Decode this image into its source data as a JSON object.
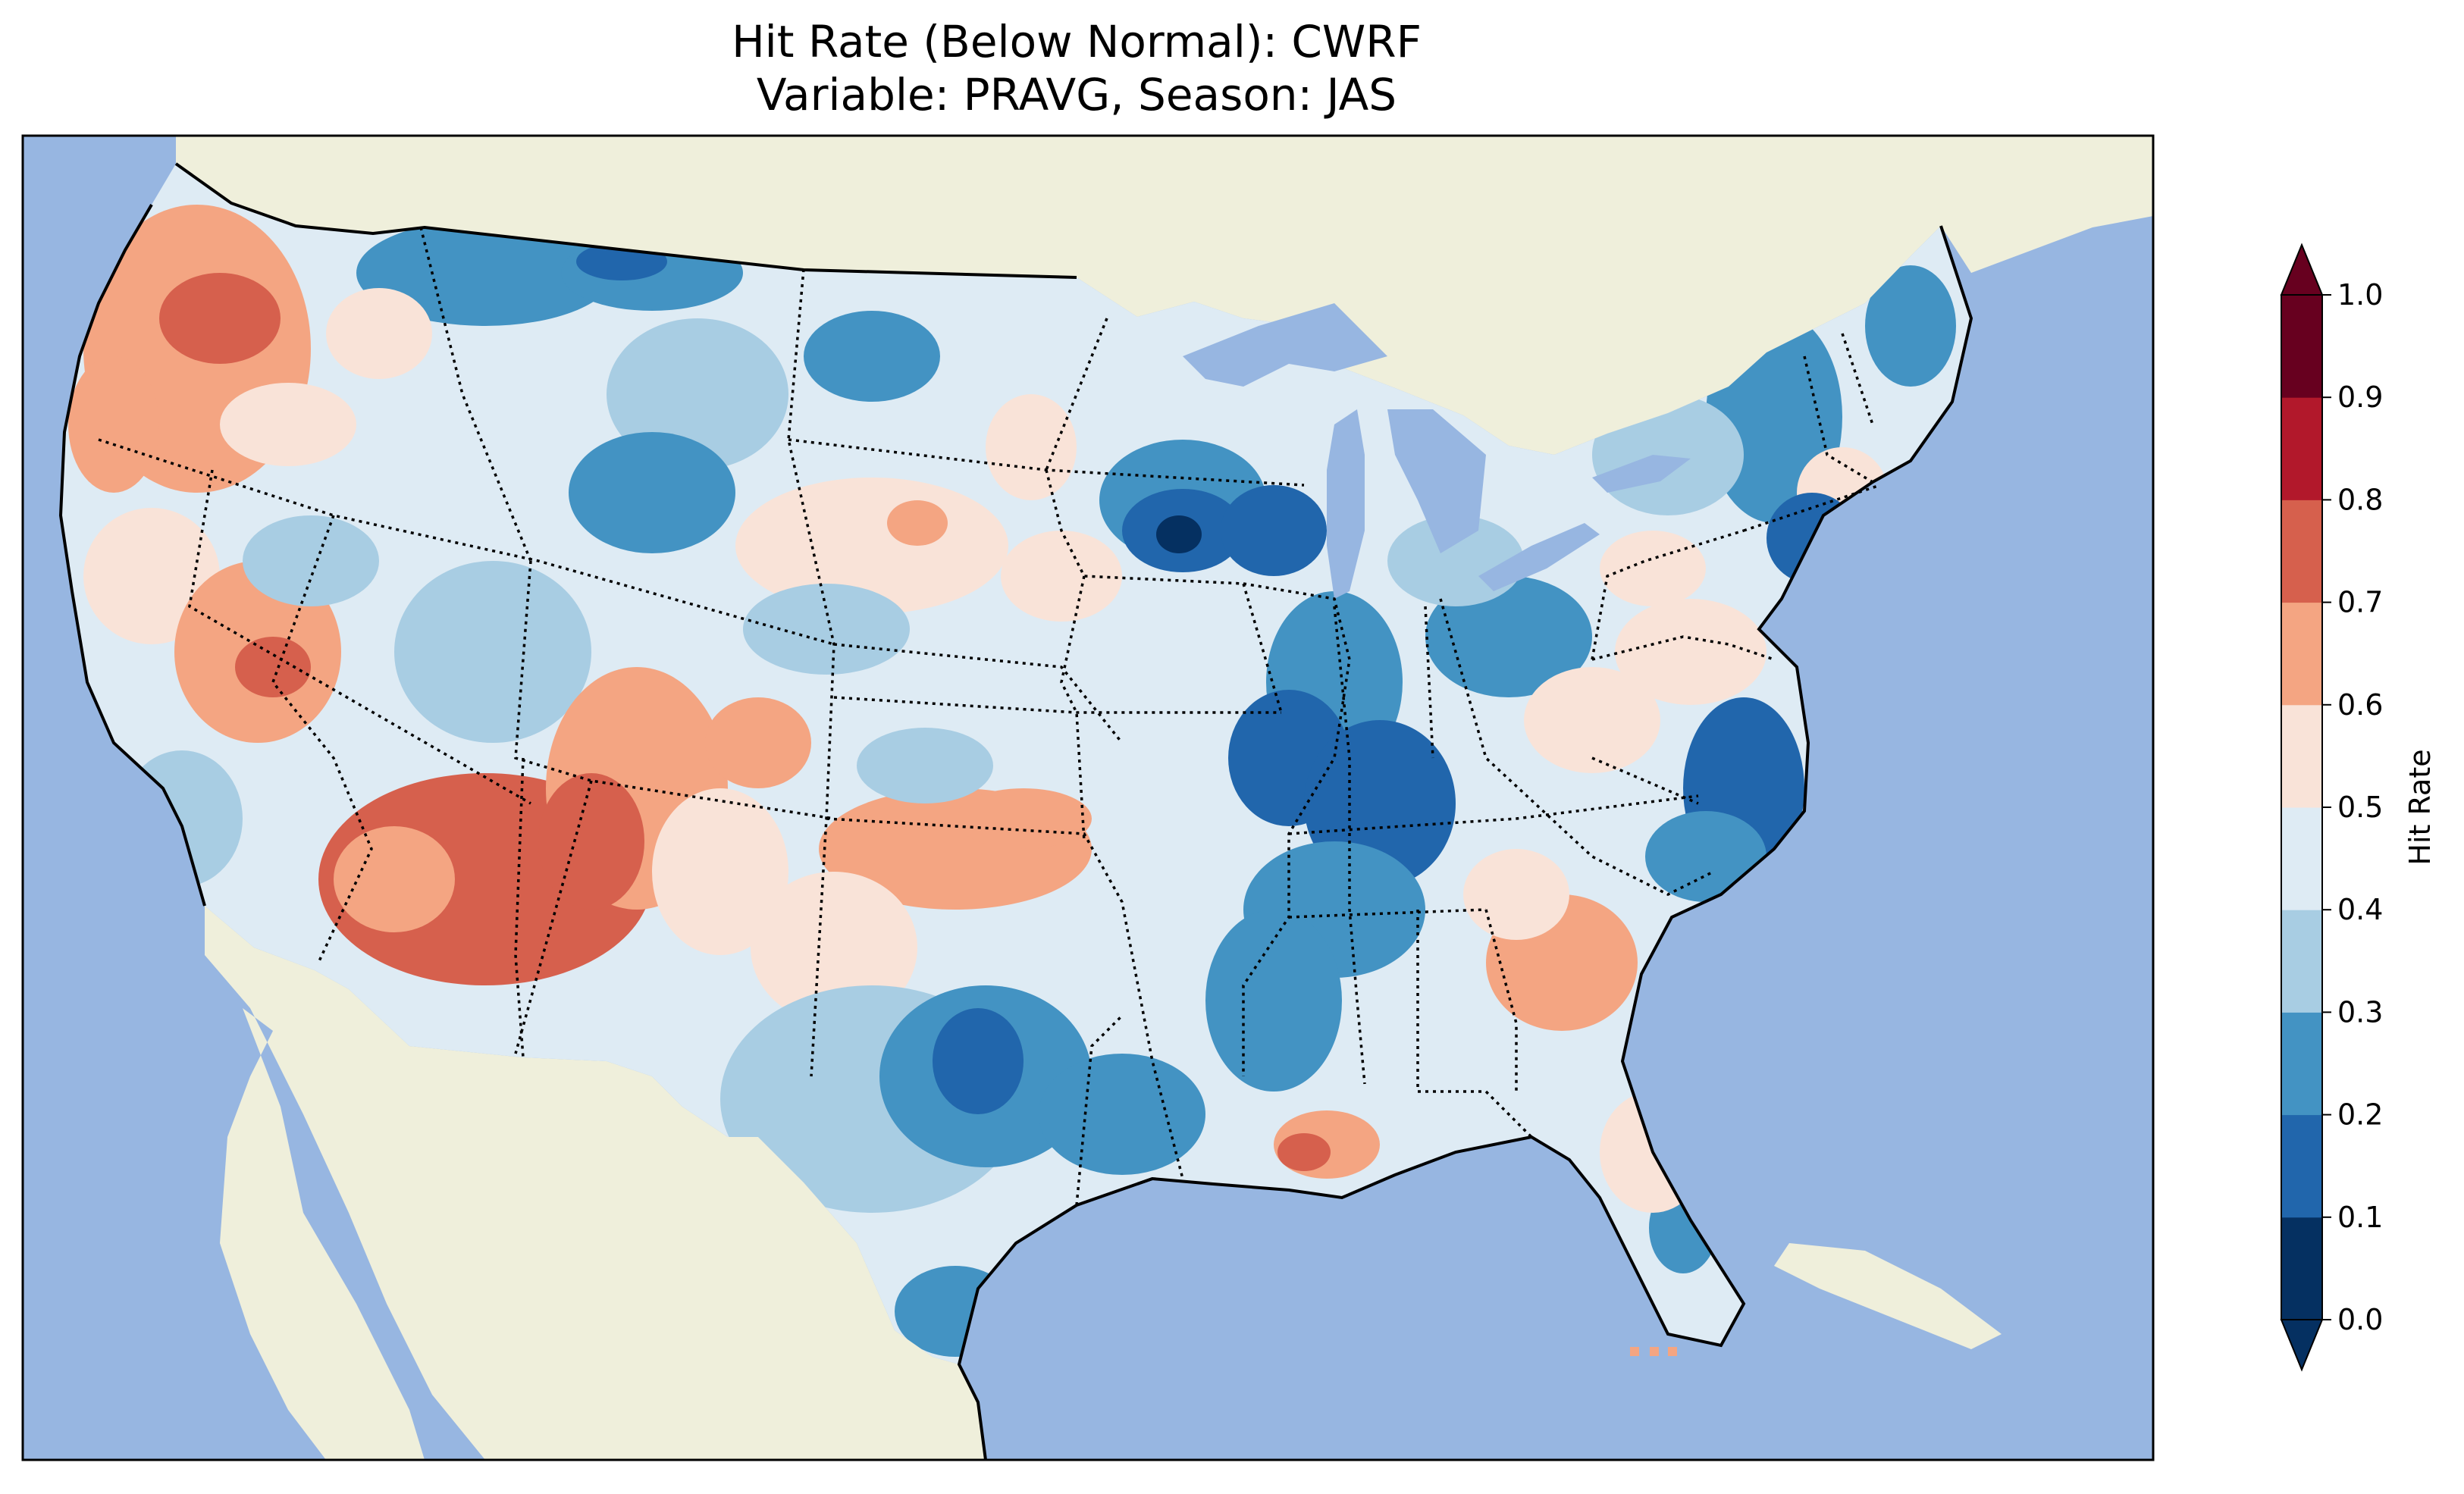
{
  "title_line1": "Hit Rate (Below Normal): CWRF",
  "title_line2": "Variable: PRAVG, Season: JAS",
  "colors": {
    "ocean": "#97b6e1",
    "land": "#efefdb",
    "frame": "#000000"
  },
  "colorbar": {
    "label": "Hit Rate",
    "extend": "both",
    "ticks": [
      "0.0",
      "0.1",
      "0.2",
      "0.3",
      "0.4",
      "0.5",
      "0.6",
      "0.7",
      "0.8",
      "0.9",
      "1.0"
    ],
    "bins": [
      {
        "min": 0.0,
        "max": 0.1,
        "color": "#053061"
      },
      {
        "min": 0.1,
        "max": 0.2,
        "color": "#2166ac"
      },
      {
        "min": 0.2,
        "max": 0.3,
        "color": "#4393c3"
      },
      {
        "min": 0.3,
        "max": 0.4,
        "color": "#a8cde3"
      },
      {
        "min": 0.4,
        "max": 0.5,
        "color": "#deebf4"
      },
      {
        "min": 0.5,
        "max": 0.6,
        "color": "#f9e3d8"
      },
      {
        "min": 0.6,
        "max": 0.7,
        "color": "#f4a582"
      },
      {
        "min": 0.7,
        "max": 0.8,
        "color": "#d6604d"
      },
      {
        "min": 0.8,
        "max": 0.9,
        "color": "#b2182b"
      },
      {
        "min": 0.9,
        "max": 1.0,
        "color": "#67001f"
      }
    ]
  },
  "chart_data": {
    "type": "heatmap",
    "title": "Hit Rate (Below Normal): CWRF",
    "subtitle": "Variable: PRAVG, Season: JAS",
    "colorbar_label": "Hit Rate",
    "value_range": [
      0.0,
      1.0
    ],
    "region": "Contiguous United States",
    "approx_regional_values": [
      {
        "region": "Pacific Northwest coast",
        "value": 0.72
      },
      {
        "region": "Northern California",
        "value": 0.58
      },
      {
        "region": "Southern California",
        "value": 0.38
      },
      {
        "region": "Nevada",
        "value": 0.62
      },
      {
        "region": "Arizona",
        "value": 0.72
      },
      {
        "region": "Utah",
        "value": 0.66
      },
      {
        "region": "New Mexico",
        "value": 0.62
      },
      {
        "region": "Montana north",
        "value": 0.25
      },
      {
        "region": "Idaho",
        "value": 0.45
      },
      {
        "region": "Wyoming",
        "value": 0.32
      },
      {
        "region": "Colorado",
        "value": 0.55
      },
      {
        "region": "North Dakota",
        "value": 0.28
      },
      {
        "region": "South Dakota",
        "value": 0.48
      },
      {
        "region": "Nebraska",
        "value": 0.45
      },
      {
        "region": "Kansas",
        "value": 0.55
      },
      {
        "region": "Oklahoma",
        "value": 0.58
      },
      {
        "region": "Texas north",
        "value": 0.45
      },
      {
        "region": "Central Texas",
        "value": 0.22
      },
      {
        "region": "South Texas coast",
        "value": 0.28
      },
      {
        "region": "Minnesota south",
        "value": 0.08
      },
      {
        "region": "Wisconsin",
        "value": 0.18
      },
      {
        "region": "Iowa",
        "value": 0.48
      },
      {
        "region": "Missouri",
        "value": 0.42
      },
      {
        "region": "Illinois",
        "value": 0.22
      },
      {
        "region": "Michigan",
        "value": 0.38
      },
      {
        "region": "Indiana",
        "value": 0.28
      },
      {
        "region": "Ohio",
        "value": 0.28
      },
      {
        "region": "Kentucky",
        "value": 0.18
      },
      {
        "region": "Tennessee",
        "value": 0.22
      },
      {
        "region": "Arkansas",
        "value": 0.45
      },
      {
        "region": "Louisiana",
        "value": 0.28
      },
      {
        "region": "Louisiana coast",
        "value": 0.72
      },
      {
        "region": "Mississippi",
        "value": 0.25
      },
      {
        "region": "Alabama",
        "value": 0.42
      },
      {
        "region": "Georgia",
        "value": 0.62
      },
      {
        "region": "South Carolina",
        "value": 0.55
      },
      {
        "region": "North Carolina coast",
        "value": 0.18
      },
      {
        "region": "Virginia",
        "value": 0.48
      },
      {
        "region": "Pennsylvania",
        "value": 0.55
      },
      {
        "region": "New York",
        "value": 0.35
      },
      {
        "region": "New England",
        "value": 0.38
      },
      {
        "region": "Maine",
        "value": 0.28
      },
      {
        "region": "Florida",
        "value": 0.52
      },
      {
        "region": "South Florida",
        "value": 0.32
      }
    ]
  }
}
